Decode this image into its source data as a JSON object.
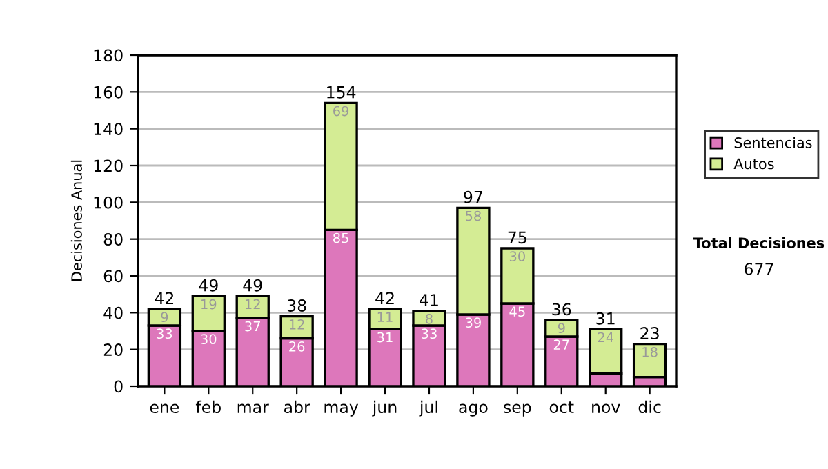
{
  "chart_data": {
    "type": "bar",
    "stacked": true,
    "ylabel": "Decisiones Anual",
    "categories": [
      "ene",
      "feb",
      "mar",
      "abr",
      "may",
      "jun",
      "jul",
      "ago",
      "sep",
      "oct",
      "nov",
      "dic"
    ],
    "series": [
      {
        "name": "Sentencias",
        "color": "#dd77bb",
        "values": [
          33,
          30,
          37,
          26,
          85,
          31,
          33,
          39,
          45,
          27,
          7,
          5
        ],
        "value_labels": [
          "33",
          "30",
          "37",
          "26",
          "85",
          "31",
          "33",
          "39",
          "45",
          "27",
          null,
          null
        ]
      },
      {
        "name": "Autos",
        "color": "#d4ec94",
        "values": [
          9,
          19,
          12,
          12,
          69,
          11,
          8,
          58,
          30,
          9,
          24,
          18
        ],
        "value_labels": [
          "9",
          "19",
          "12",
          "12",
          "69",
          "11",
          "8",
          "58",
          "30",
          "9",
          "24",
          "18"
        ]
      }
    ],
    "totals": [
      "42",
      "49",
      "49",
      "38",
      "154",
      "42",
      "41",
      "97",
      "75",
      "36",
      "31",
      "23"
    ],
    "ylim": [
      0,
      180
    ],
    "yticks": [
      0,
      20,
      40,
      60,
      80,
      100,
      120,
      140,
      160,
      180
    ],
    "grid": "y",
    "legend": "right",
    "annotations": [
      "Total Decisiones",
      "677"
    ]
  }
}
